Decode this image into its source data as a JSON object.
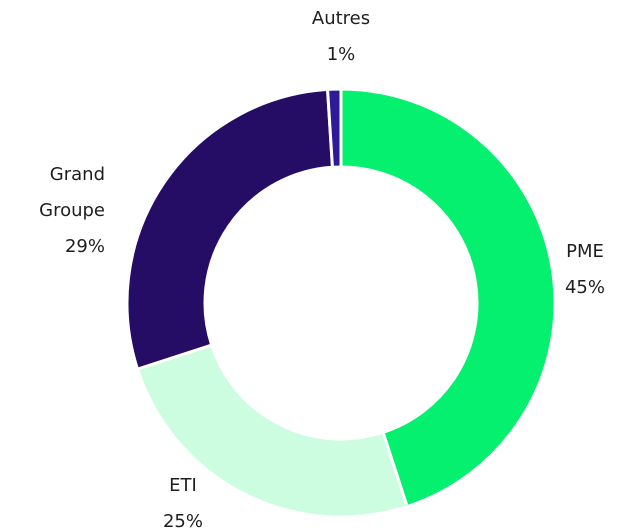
{
  "chart_data": {
    "type": "donut",
    "categories": [
      "PME",
      "ETI",
      "Grand Groupe",
      "Autres"
    ],
    "values": [
      45,
      25,
      29,
      1
    ],
    "value_labels": [
      "45%",
      "25%",
      "29%",
      "1%"
    ],
    "colors": [
      "#05f06f",
      "#ccfde0",
      "#250d66",
      "#2e1a96"
    ]
  }
}
